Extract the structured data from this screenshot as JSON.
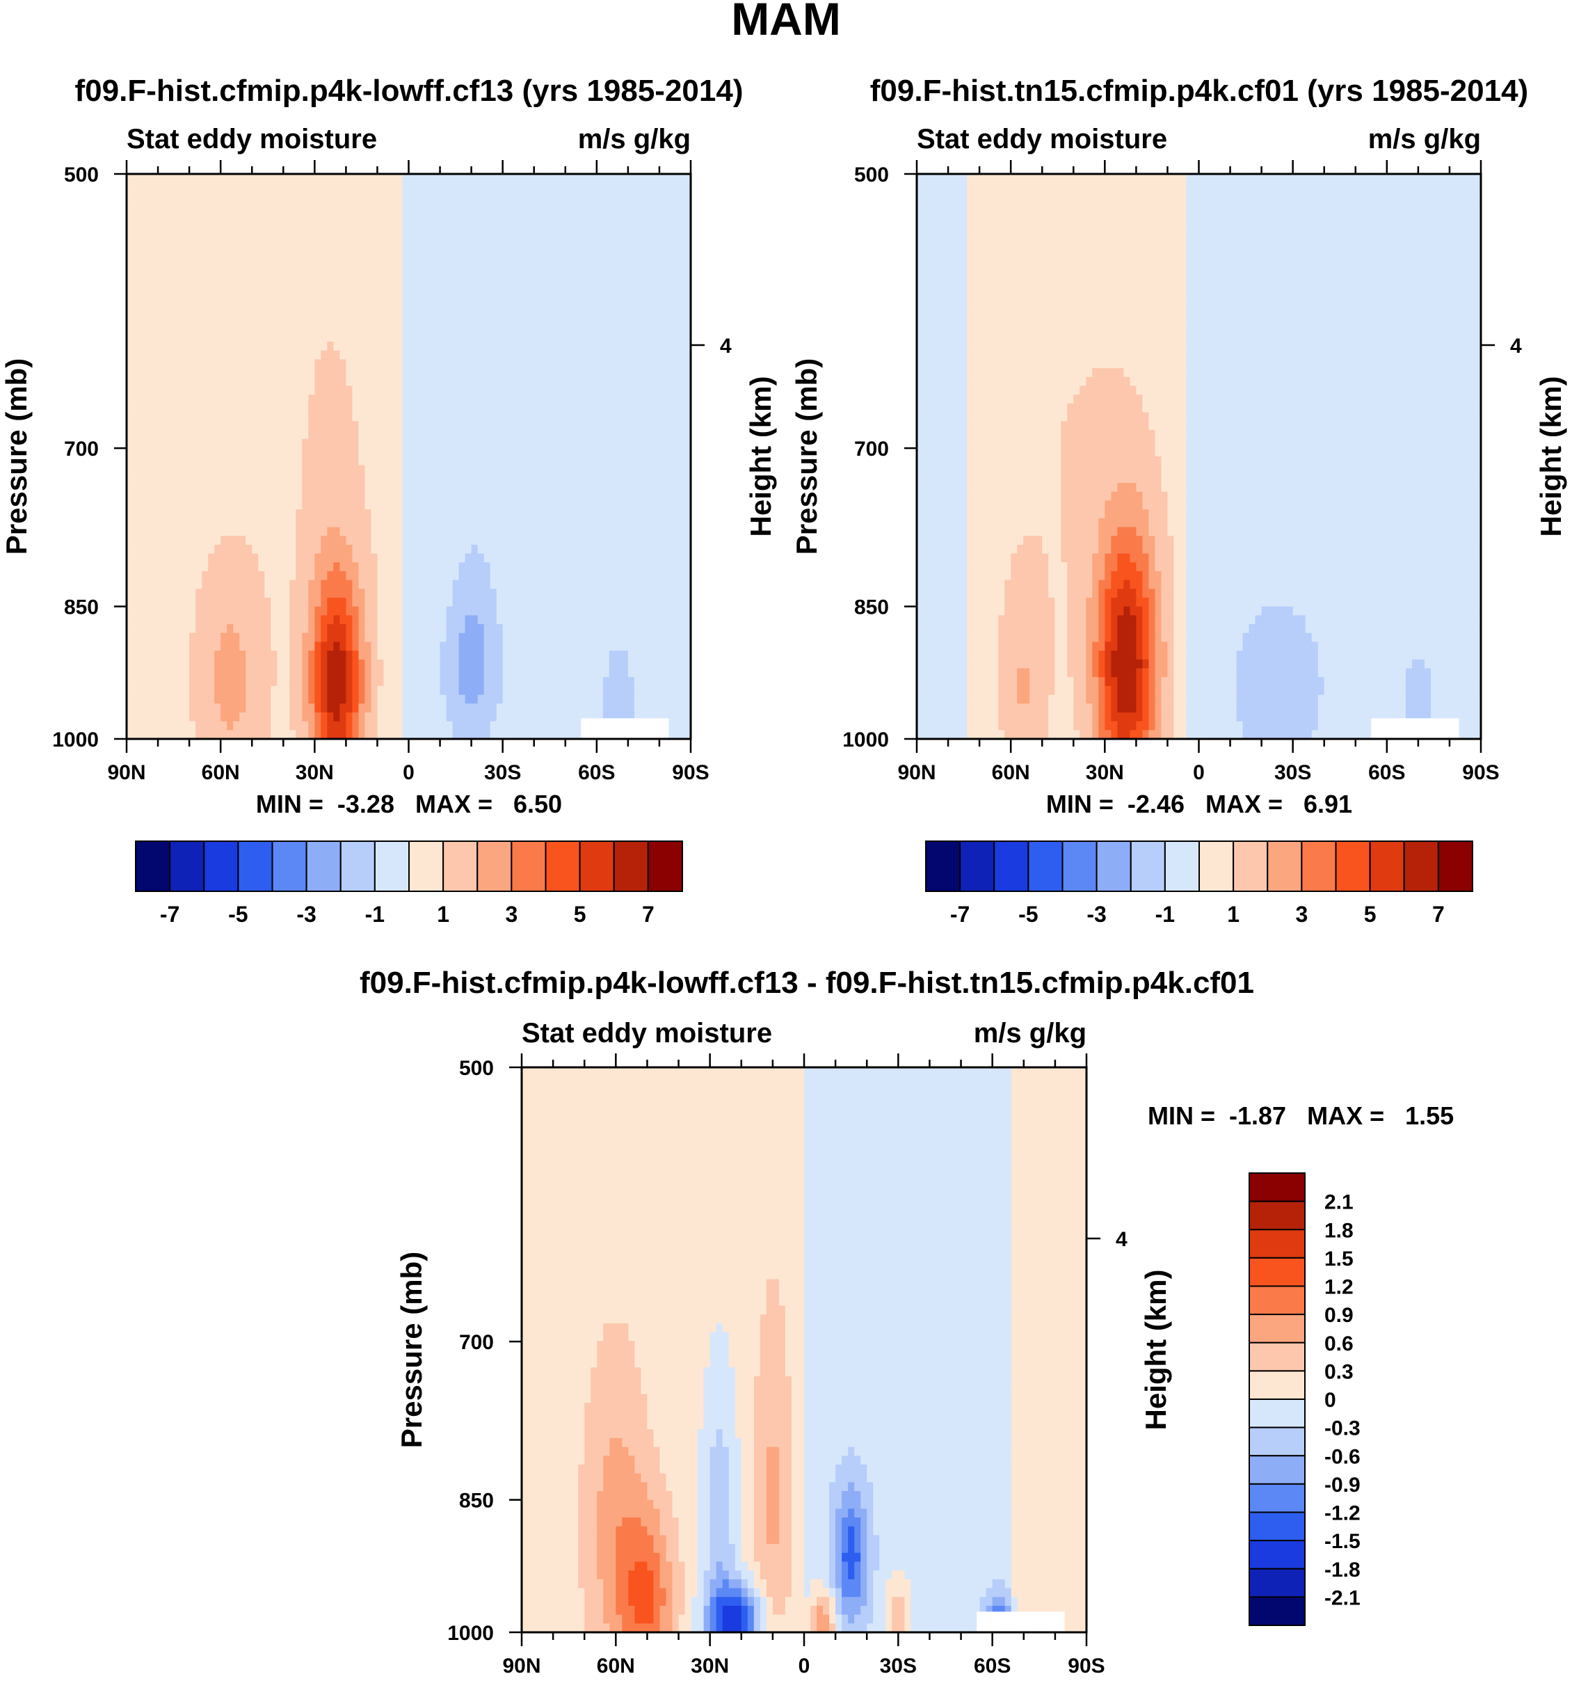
{
  "figure": {
    "title": "MAM"
  },
  "colors": {
    "positive": [
      "#fde7d3",
      "#fcc7ad",
      "#fba67f",
      "#fa7a4a",
      "#f9541e",
      "#e03a10",
      "#b52208",
      "#8b0000"
    ],
    "negative": [
      "#d6e7fb",
      "#b7cdfa",
      "#8eadf7",
      "#5b88f5",
      "#2e5ef0",
      "#1a3be0",
      "#0e22b8",
      "#02066f"
    ],
    "missing": "#ffffff"
  },
  "chart_data": [
    {
      "type": "heatmap",
      "id": "panel-top-left",
      "title": "f09.F-hist.cfmip.p4k-lowff.cf13 (yrs 1985-2014)",
      "left_label": "Stat eddy moisture",
      "right_label": "m/s g/kg",
      "ylabel": "Pressure (mb)",
      "ylabel_right": "Height (km)",
      "right_tick_labels": [
        "4"
      ],
      "x_tick_labels": [
        "90N",
        "60N",
        "30N",
        "0",
        "30S",
        "60S",
        "90S"
      ],
      "y_tick_labels": [
        "500",
        "700",
        "850",
        "1000"
      ],
      "y_ticks": [
        500,
        700,
        850,
        1000
      ],
      "xlim": [
        90,
        -90
      ],
      "ylim": [
        1000,
        500
      ],
      "min_max": "MIN =  -3.28   MAX =   6.50",
      "colorbar_labels": [
        "-7",
        "-5",
        "-3",
        "-1",
        "1",
        "3",
        "5",
        "7"
      ],
      "levels": [
        -7,
        -6,
        -5,
        -4,
        -3,
        -2,
        -1,
        0,
        1,
        2,
        3,
        4,
        5,
        6,
        7
      ],
      "features": [
        {
          "lat": 23,
          "p": 935,
          "amp": 5.9,
          "wlat": 6,
          "wp": 85
        },
        {
          "lat": 57,
          "p": 930,
          "amp": 1.8,
          "wlat": 8,
          "wp": 95
        },
        {
          "lat": 25,
          "p": 720,
          "amp": 0.6,
          "wlat": 12,
          "wp": 170
        },
        {
          "lat": -20,
          "p": 920,
          "amp": -1.5,
          "wlat": 6,
          "wp": 55
        },
        {
          "lat": -21,
          "p": 870,
          "amp": -0.7,
          "wlat": 5,
          "wp": 75
        },
        {
          "lat": -67,
          "p": 960,
          "amp": -1.5,
          "wlat": 3,
          "wp": 45
        }
      ]
    },
    {
      "type": "heatmap",
      "id": "panel-top-right",
      "title": "f09.F-hist.tn15.cfmip.p4k.cf01 (yrs 1985-2014)",
      "left_label": "Stat eddy moisture",
      "right_label": "m/s g/kg",
      "ylabel": "Pressure (mb)",
      "ylabel_right": "Height (km)",
      "right_tick_labels": [
        "4"
      ],
      "x_tick_labels": [
        "90N",
        "60N",
        "30N",
        "0",
        "30S",
        "60S",
        "90S"
      ],
      "y_tick_labels": [
        "500",
        "700",
        "850",
        "1000"
      ],
      "y_ticks": [
        500,
        700,
        850,
        1000
      ],
      "xlim": [
        90,
        -90
      ],
      "ylim": [
        1000,
        500
      ],
      "min_max": "MIN =  -2.46   MAX =   6.91",
      "colorbar_labels": [
        "-7",
        "-5",
        "-3",
        "-1",
        "1",
        "3",
        "5",
        "7"
      ],
      "levels": [
        -7,
        -6,
        -5,
        -4,
        -3,
        -2,
        -1,
        0,
        1,
        2,
        3,
        4,
        5,
        6,
        7
      ],
      "features": [
        {
          "lat": 23,
          "p": 915,
          "amp": 6.3,
          "wlat": 7,
          "wp": 100
        },
        {
          "lat": 56,
          "p": 940,
          "amp": 1.4,
          "wlat": 5,
          "wp": 75
        },
        {
          "lat": 40,
          "p": 700,
          "amp": 0.6,
          "wlat": 25,
          "wp": 220
        },
        {
          "lat": -25,
          "p": 940,
          "amp": -1.2,
          "wlat": 12,
          "wp": 80
        },
        {
          "lat": -70,
          "p": 960,
          "amp": -1.1,
          "wlat": 4,
          "wp": 50
        }
      ]
    },
    {
      "type": "heatmap",
      "id": "panel-bottom",
      "title": "f09.F-hist.cfmip.p4k-lowff.cf13 - f09.F-hist.tn15.cfmip.p4k.cf01",
      "left_label": "Stat eddy moisture",
      "right_label": "m/s g/kg",
      "ylabel": "Pressure (mb)",
      "ylabel_right": "Height (km)",
      "right_tick_labels": [
        "4"
      ],
      "x_tick_labels": [
        "90N",
        "60N",
        "30N",
        "0",
        "30S",
        "60S",
        "90S"
      ],
      "y_tick_labels": [
        "500",
        "700",
        "850",
        "1000"
      ],
      "y_ticks": [
        500,
        700,
        850,
        1000
      ],
      "xlim": [
        90,
        -90
      ],
      "ylim": [
        1000,
        500
      ],
      "min_max": "MIN =  -1.87   MAX =   1.55",
      "colorbar_labels": [
        "2.1",
        "1.8",
        "1.5",
        "1.2",
        "0.9",
        "0.6",
        "0.3",
        "0",
        "-0.3",
        "-0.6",
        "-0.9",
        "-1.2",
        "-1.5",
        "-1.8",
        "-2.1"
      ],
      "levels": [
        -2.1,
        -1.8,
        -1.5,
        -1.2,
        -0.9,
        -0.6,
        -0.3,
        0,
        0.3,
        0.6,
        0.9,
        1.2,
        1.5,
        1.8,
        2.1
      ],
      "features": [
        {
          "lat": 22,
          "p": 985,
          "amp": -1.7,
          "wlat": 6,
          "wp": 30
        },
        {
          "lat": 27,
          "p": 880,
          "amp": -0.7,
          "wlat": 4,
          "wp": 110
        },
        {
          "lat": -15,
          "p": 910,
          "amp": -1.2,
          "wlat": 4,
          "wp": 55
        },
        {
          "lat": 50,
          "p": 960,
          "amp": 1.0,
          "wlat": 6,
          "wp": 70
        },
        {
          "lat": 60,
          "p": 880,
          "amp": 0.6,
          "wlat": 7,
          "wp": 120
        },
        {
          "lat": 10,
          "p": 850,
          "amp": 0.5,
          "wlat": 4,
          "wp": 130
        },
        {
          "lat": -6,
          "p": 990,
          "amp": 1.0,
          "wlat": 3,
          "wp": 30
        },
        {
          "lat": -30,
          "p": 985,
          "amp": 0.6,
          "wlat": 3,
          "wp": 35
        },
        {
          "lat": -62,
          "p": 990,
          "amp": -1.3,
          "wlat": 3,
          "wp": 25
        }
      ]
    }
  ]
}
